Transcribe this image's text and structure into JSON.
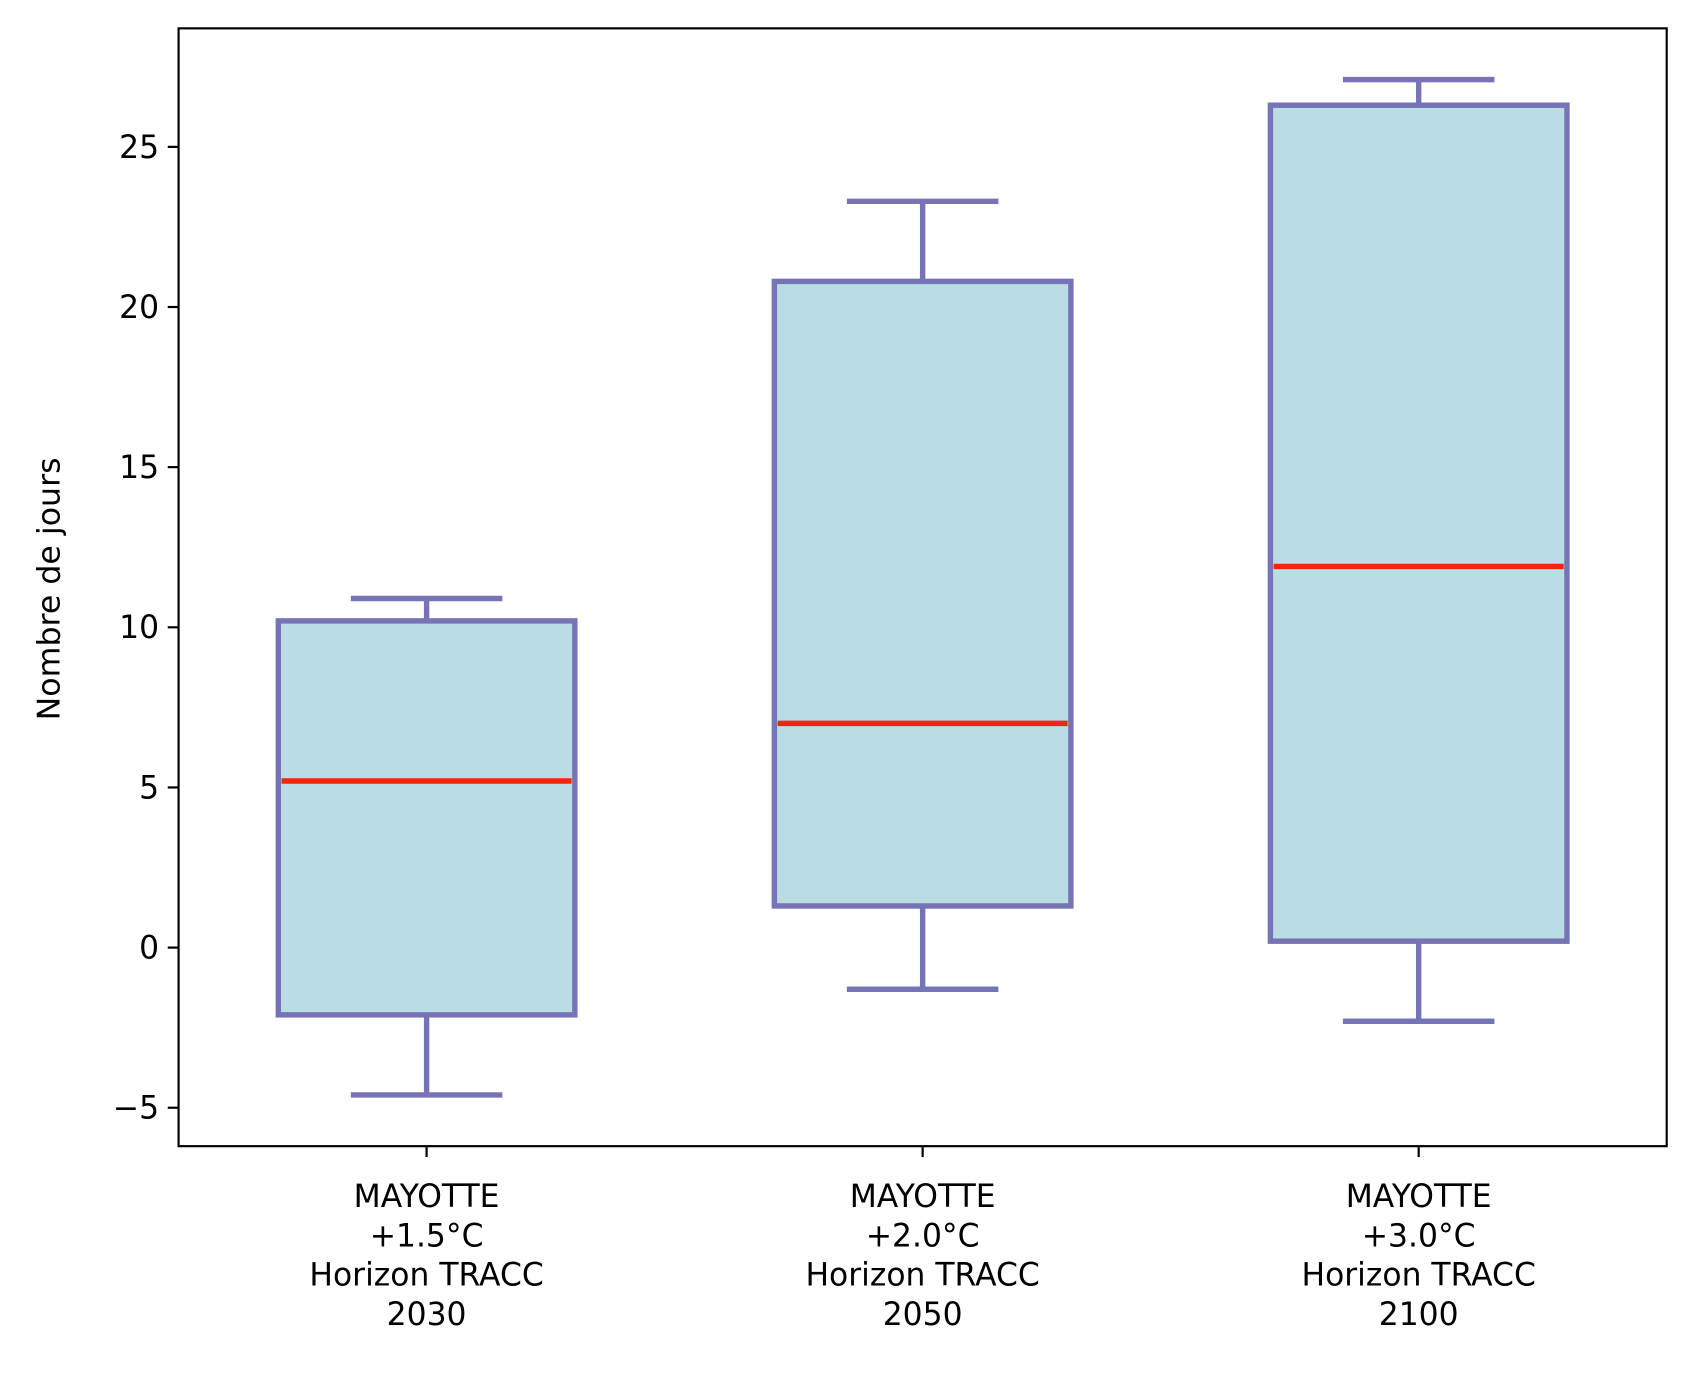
{
  "chart_data": {
    "type": "boxplot",
    "title": "",
    "xlabel": "",
    "ylabel": "Nombre de jours",
    "ylim": [
      -6.2,
      28.7
    ],
    "yticks": [
      -5,
      0,
      5,
      10,
      15,
      20,
      25
    ],
    "ytick_labels": [
      "−5",
      "0",
      "5",
      "10",
      "15",
      "20",
      "25"
    ],
    "grid": false,
    "categories": [
      [
        "MAYOTTE",
        "+1.5°C",
        "Horizon TRACC",
        "2030"
      ],
      [
        "MAYOTTE",
        "+2.0°C",
        "Horizon TRACC",
        "2050"
      ],
      [
        "MAYOTTE",
        "+3.0°C",
        "Horizon TRACC",
        "2100"
      ]
    ],
    "boxes": [
      {
        "whisker_low": -4.6,
        "q1": -2.1,
        "median": 5.2,
        "q3": 10.2,
        "whisker_high": 10.9
      },
      {
        "whisker_low": -1.3,
        "q1": 1.3,
        "median": 7.0,
        "q3": 20.8,
        "whisker_high": 23.3
      },
      {
        "whisker_low": -2.3,
        "q1": 0.2,
        "median": 11.9,
        "q3": 26.3,
        "whisker_high": 27.1
      }
    ],
    "colors": {
      "box_fill": "#badde3",
      "box_edge": "#7674b7",
      "median": "#f2260c"
    }
  }
}
